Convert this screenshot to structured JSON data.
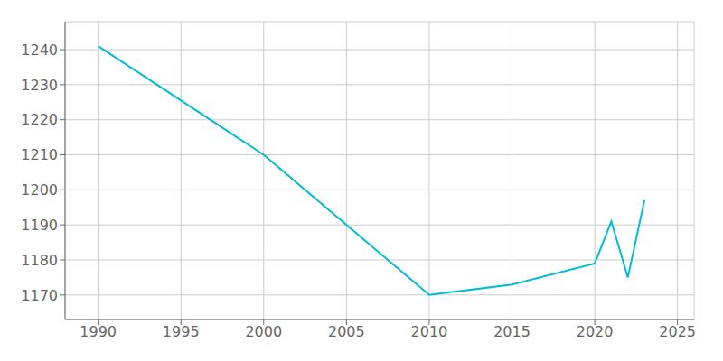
{
  "chart_data": {
    "type": "line",
    "x": [
      1990,
      2000,
      2010,
      2015,
      2020,
      2021,
      2022,
      2023
    ],
    "values": [
      1241,
      1210,
      1170,
      1173,
      1179,
      1191,
      1175,
      1197
    ],
    "color": "#00bcd4",
    "xlim": [
      1988,
      2026
    ],
    "ylim": [
      1163,
      1248
    ],
    "xticks": [
      1990,
      1995,
      2000,
      2005,
      2010,
      2015,
      2020,
      2025
    ],
    "yticks": [
      1170,
      1180,
      1190,
      1200,
      1210,
      1220,
      1230,
      1240
    ],
    "grid": true
  }
}
